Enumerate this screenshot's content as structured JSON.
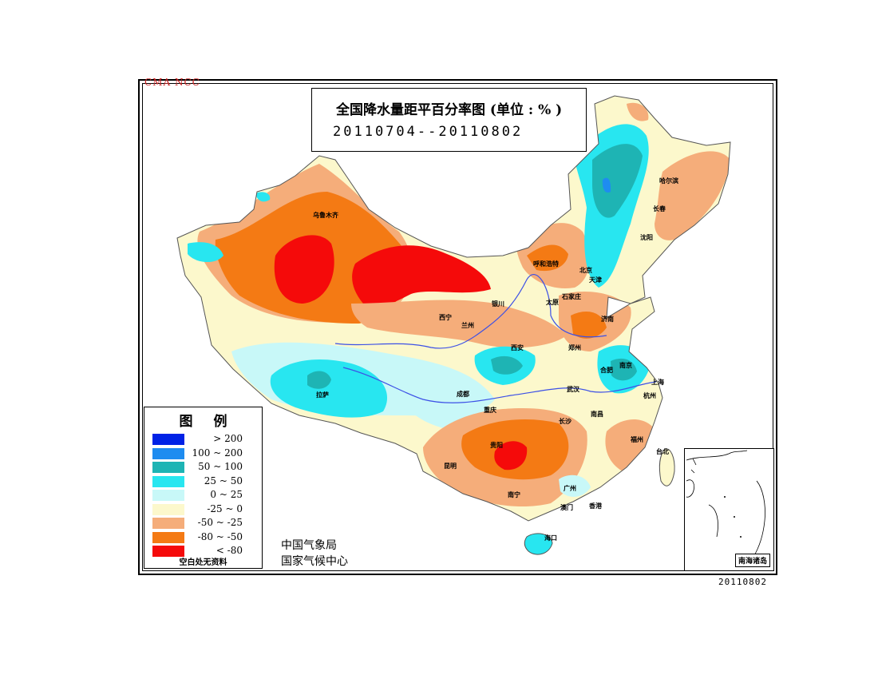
{
  "header": {
    "agency_tag": "CMA  NCC",
    "title": "全国降水量距平百分率图 (单位 : % )",
    "period": "20110704--20110802"
  },
  "legend": {
    "title": "图例",
    "items": [
      {
        "label": "> 200",
        "color": "#0022e6"
      },
      {
        "label": "100 ~ 200",
        "color": "#1e8cf0"
      },
      {
        "label": "50 ~ 100",
        "color": "#1eb4b4"
      },
      {
        "label": "25 ~ 50",
        "color": "#28e6f0"
      },
      {
        "label": "0 ~ 25",
        "color": "#c8f8f8"
      },
      {
        "label": "-25 ~ 0",
        "color": "#fcf8cc"
      },
      {
        "label": "-50 ~ -25",
        "color": "#f5ad7a"
      },
      {
        "label": "-80 ~ -50",
        "color": "#f47a14"
      },
      {
        "label": "< -80",
        "color": "#f50a0a"
      }
    ],
    "note": "空白处无资料"
  },
  "organization": {
    "line1": "中国气象局",
    "line2": "国家气候中心"
  },
  "inset": {
    "label": "南海诸岛"
  },
  "footer": {
    "date_stamp": "20110802"
  },
  "cities": {
    "harbin": "哈尔滨",
    "changchun": "长春",
    "shenyang": "沈阳",
    "urumqi": "乌鲁木齐",
    "hohhot": "呼和浩特",
    "beijing": "北京",
    "tianjin": "天津",
    "taiyuan": "太原",
    "shijiazhuang": "石家庄",
    "yinchuan": "银川",
    "xining": "西宁",
    "lanzhou": "兰州",
    "jinan": "济南",
    "xian": "西安",
    "zhengzhou": "郑州",
    "hefei": "合肥",
    "nanjing": "南京",
    "shanghai": "上海",
    "hangzhou": "杭州",
    "lhasa": "拉萨",
    "chengdu": "成都",
    "chongqing": "重庆",
    "wuhan": "武汉",
    "changsha": "长沙",
    "nanchang": "南昌",
    "fuzhou": "福州",
    "taibei": "台北",
    "guiyang": "贵阳",
    "kunming": "昆明",
    "nanning": "南宁",
    "guangzhou": "广州",
    "aomen": "澳门",
    "xianggang": "香港",
    "haikou": "海口"
  }
}
